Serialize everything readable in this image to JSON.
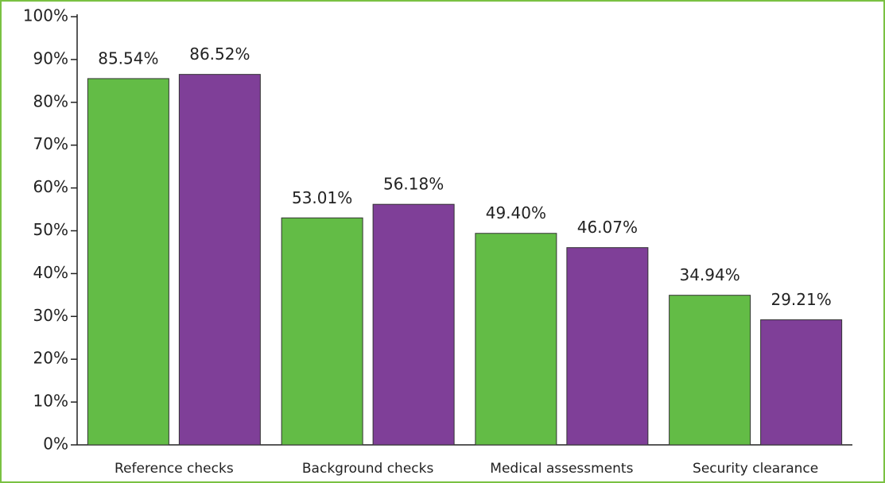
{
  "chart_data": {
    "type": "bar",
    "categories": [
      "Reference checks",
      "Background checks",
      "Medical assessments",
      "Security clearance"
    ],
    "series": [
      {
        "color": "#63bc46",
        "values": [
          85.54,
          53.01,
          49.4,
          34.94
        ],
        "value_labels": [
          "85.54%",
          "53.01%",
          "49.40%",
          "34.94%"
        ]
      },
      {
        "color": "#7f3f98",
        "values": [
          86.52,
          56.18,
          46.07,
          29.21
        ],
        "value_labels": [
          "86.52%",
          "56.18%",
          "46.07%",
          "29.21%"
        ]
      }
    ],
    "ylim": [
      0,
      100
    ],
    "yticks": [
      {
        "value": 0,
        "label": "0%"
      },
      {
        "value": 10,
        "label": "10%"
      },
      {
        "value": 20,
        "label": "20%"
      },
      {
        "value": 30,
        "label": "30%"
      },
      {
        "value": 40,
        "label": "40%"
      },
      {
        "value": 50,
        "label": "50%"
      },
      {
        "value": 60,
        "label": "60%"
      },
      {
        "value": 70,
        "label": "70%"
      },
      {
        "value": 80,
        "label": "80%"
      },
      {
        "value": 90,
        "label": "90%"
      },
      {
        "value": 100,
        "label": "100%"
      }
    ],
    "grid": false
  }
}
